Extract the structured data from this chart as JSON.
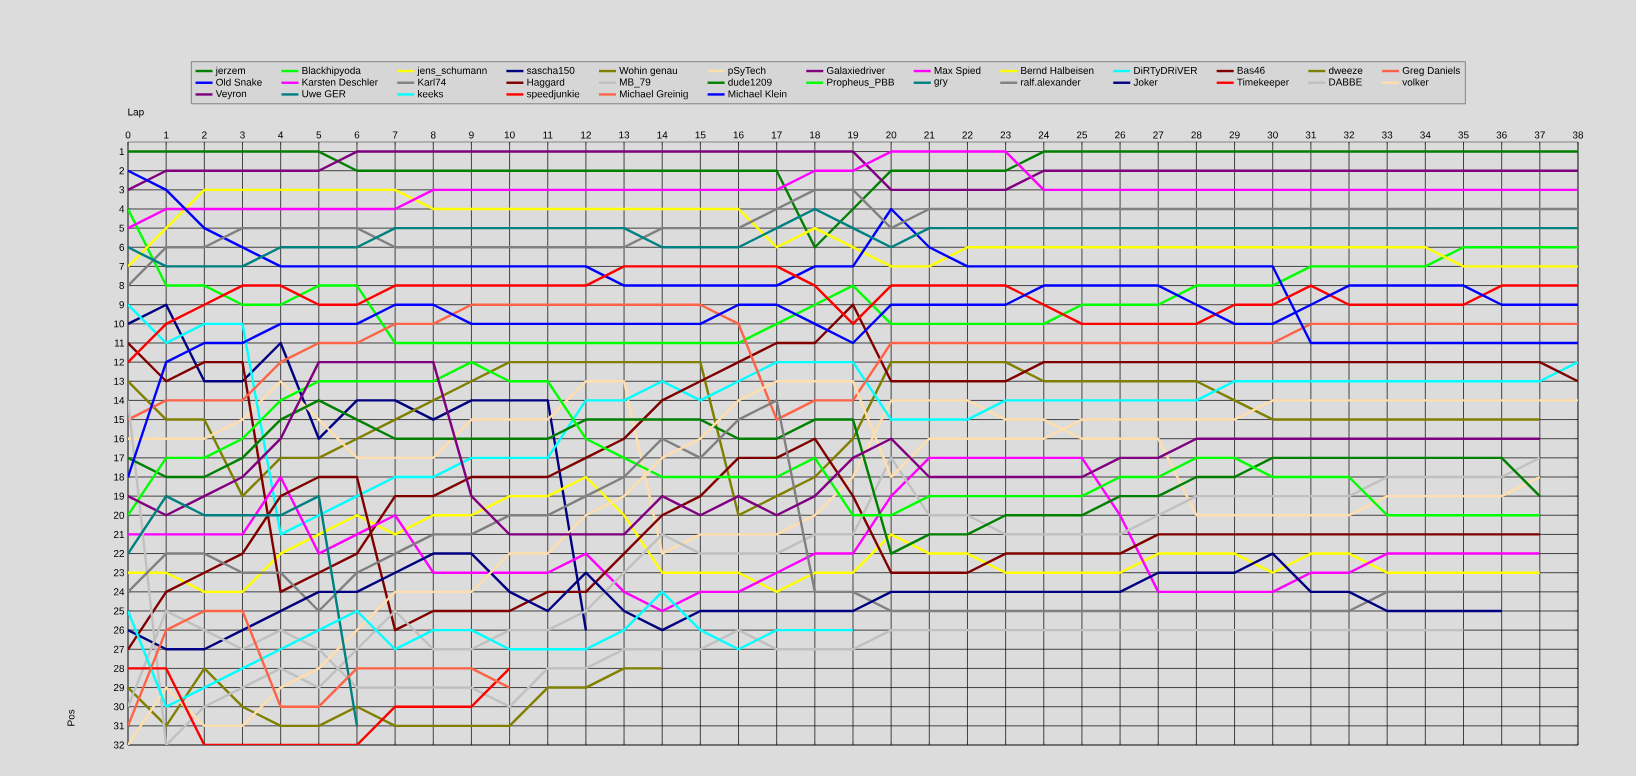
{
  "chart_data": {
    "type": "line",
    "xlabel": "Lap",
    "ylabel": "Pos",
    "x": [
      0,
      1,
      2,
      3,
      4,
      5,
      6,
      7,
      8,
      9,
      10,
      11,
      12,
      13,
      14,
      15,
      16,
      17,
      18,
      19,
      20,
      21,
      22,
      23,
      24,
      25,
      26,
      27,
      28,
      29,
      30,
      31,
      32,
      33,
      34,
      35,
      36,
      37,
      38
    ],
    "xlim": [
      0,
      38
    ],
    "xticks": [
      0,
      1,
      2,
      3,
      4,
      5,
      6,
      7,
      8,
      9,
      10,
      11,
      12,
      13,
      14,
      15,
      16,
      17,
      18,
      19,
      20,
      21,
      22,
      23,
      24,
      25,
      26,
      27,
      28,
      29,
      30,
      31,
      32,
      33,
      34,
      35,
      36,
      37,
      38
    ],
    "ylim": [
      32,
      0.5
    ],
    "yticks": [
      1,
      2,
      3,
      4,
      5,
      6,
      7,
      8,
      9,
      10,
      11,
      12,
      13,
      14,
      15,
      16,
      17,
      18,
      19,
      20,
      21,
      22,
      23,
      24,
      25,
      26,
      27,
      28,
      29,
      30,
      31,
      32
    ],
    "grid": true,
    "legend": "top",
    "marker": "none",
    "line_style": "solid",
    "series": [
      {
        "name": "jerzem",
        "color": "#008000",
        "values": [
          1,
          1,
          1,
          1,
          1,
          1,
          2,
          2,
          2,
          2,
          2,
          2,
          2,
          2,
          2,
          2,
          2,
          2,
          6,
          4,
          2,
          2,
          2,
          2,
          1,
          1,
          1,
          1,
          1,
          1,
          1,
          1,
          1,
          1,
          1,
          1,
          1,
          1,
          1
        ]
      },
      {
        "name": "Blackhipyoda",
        "color": "#00ff00",
        "values": [
          4,
          8,
          8,
          9,
          9,
          8,
          8,
          11,
          11,
          11,
          11,
          11,
          11,
          11,
          11,
          11,
          11,
          10,
          9,
          8,
          10,
          10,
          10,
          10,
          10,
          9,
          9,
          9,
          8,
          8,
          8,
          7,
          7,
          7,
          7,
          6,
          6,
          6,
          6
        ]
      },
      {
        "name": "jens_schumann",
        "color": "#ffff00",
        "values": [
          7,
          5,
          3,
          3,
          3,
          3,
          3,
          3,
          4,
          4,
          4,
          4,
          4,
          4,
          4,
          4,
          4,
          6,
          5,
          6,
          7,
          7,
          6,
          6,
          6,
          6,
          6,
          6,
          6,
          6,
          6,
          6,
          6,
          6,
          6,
          7,
          7,
          7,
          7
        ]
      },
      {
        "name": "sascha150",
        "color": "#000080",
        "values": [
          10,
          9,
          13,
          13,
          11,
          16,
          14,
          14,
          15,
          14,
          14,
          14,
          26,
          null,
          null,
          null,
          null,
          null,
          null,
          null,
          null,
          null,
          null,
          null,
          null,
          null,
          null,
          null,
          null,
          null,
          null,
          null,
          null,
          null,
          null,
          null,
          null,
          null,
          null
        ]
      },
      {
        "name": "Wohin genau",
        "color": "#808000",
        "values": [
          13,
          15,
          15,
          19,
          17,
          17,
          16,
          15,
          14,
          13,
          12,
          12,
          12,
          12,
          12,
          12,
          20,
          19,
          18,
          16,
          12,
          12,
          12,
          12,
          13,
          13,
          13,
          13,
          13,
          14,
          15,
          15,
          15,
          15,
          15,
          15,
          15,
          15,
          null
        ]
      },
      {
        "name": "pSyTech",
        "color": "#ffdead",
        "values": [
          16,
          16,
          16,
          15,
          13,
          15,
          17,
          17,
          17,
          15,
          15,
          15,
          13,
          13,
          22,
          21,
          21,
          21,
          20,
          18,
          14,
          14,
          14,
          15,
          15,
          16,
          16,
          16,
          20,
          20,
          20,
          20,
          20,
          19,
          19,
          19,
          19,
          18,
          null
        ]
      },
      {
        "name": "Galaxiedriver",
        "color": "#800080",
        "values": [
          3,
          2,
          2,
          2,
          2,
          2,
          1,
          1,
          1,
          1,
          1,
          1,
          1,
          1,
          1,
          1,
          1,
          1,
          1,
          1,
          3,
          3,
          3,
          3,
          2,
          2,
          2,
          2,
          2,
          2,
          2,
          2,
          2,
          2,
          2,
          2,
          2,
          2,
          2
        ]
      },
      {
        "name": "Max Spied",
        "color": "#ff00ff",
        "values": [
          5,
          4,
          4,
          4,
          4,
          4,
          4,
          4,
          3,
          3,
          3,
          3,
          3,
          3,
          3,
          3,
          3,
          3,
          2,
          2,
          1,
          1,
          1,
          1,
          3,
          3,
          3,
          3,
          3,
          3,
          3,
          3,
          3,
          3,
          3,
          3,
          3,
          3,
          3
        ]
      },
      {
        "name": "Bernd Halbeisen",
        "color": "#ffff00",
        "values": [
          23,
          23,
          24,
          24,
          22,
          21,
          20,
          21,
          20,
          20,
          19,
          19,
          18,
          20,
          23,
          23,
          23,
          24,
          23,
          23,
          21,
          22,
          22,
          23,
          23,
          23,
          23,
          22,
          22,
          22,
          23,
          22,
          22,
          23,
          23,
          23,
          23,
          23,
          null
        ]
      },
      {
        "name": "DiRTyDRiVER",
        "color": "#00ffff",
        "values": [
          9,
          11,
          10,
          10,
          21,
          20,
          19,
          18,
          18,
          17,
          17,
          17,
          14,
          14,
          13,
          14,
          13,
          12,
          12,
          12,
          15,
          15,
          15,
          14,
          14,
          14,
          14,
          14,
          14,
          13,
          13,
          13,
          13,
          13,
          13,
          13,
          13,
          13,
          12
        ]
      },
      {
        "name": "Bas46",
        "color": "#800000",
        "values": [
          11,
          13,
          12,
          12,
          24,
          23,
          22,
          19,
          19,
          18,
          18,
          18,
          17,
          16,
          14,
          13,
          12,
          11,
          11,
          9,
          13,
          13,
          13,
          13,
          12,
          12,
          12,
          12,
          12,
          12,
          12,
          12,
          12,
          12,
          12,
          12,
          12,
          12,
          13
        ]
      },
      {
        "name": "dweeze",
        "color": "#808000",
        "values": [
          29,
          31,
          28,
          30,
          31,
          31,
          30,
          31,
          31,
          31,
          31,
          29,
          29,
          28,
          28,
          null,
          null,
          null,
          null,
          null,
          null,
          null,
          null,
          null,
          null,
          null,
          null,
          null,
          null,
          null,
          null,
          null,
          null,
          null,
          null,
          null,
          null,
          null,
          null
        ]
      },
      {
        "name": "Greg Daniels",
        "color": "#ff6347",
        "values": [
          15,
          14,
          14,
          14,
          12,
          11,
          11,
          10,
          10,
          9,
          9,
          9,
          9,
          9,
          9,
          9,
          10,
          15,
          14,
          14,
          11,
          11,
          11,
          11,
          11,
          11,
          11,
          11,
          11,
          11,
          11,
          10,
          10,
          10,
          10,
          10,
          10,
          10,
          10
        ]
      },
      {
        "name": "Old Snake",
        "color": "#0000ff",
        "values": [
          2,
          3,
          5,
          6,
          7,
          7,
          7,
          7,
          7,
          7,
          7,
          7,
          7,
          8,
          8,
          8,
          8,
          8,
          7,
          7,
          4,
          6,
          7,
          7,
          7,
          7,
          7,
          7,
          7,
          7,
          7,
          11,
          11,
          11,
          11,
          11,
          11,
          11,
          11
        ]
      },
      {
        "name": "Karsten Deschler",
        "color": "#ff00ff",
        "values": [
          21,
          21,
          21,
          21,
          18,
          22,
          21,
          20,
          23,
          23,
          23,
          23,
          22,
          24,
          25,
          24,
          24,
          23,
          22,
          22,
          19,
          17,
          17,
          17,
          17,
          17,
          20,
          24,
          24,
          24,
          24,
          23,
          23,
          22,
          22,
          22,
          22,
          22,
          null
        ]
      },
      {
        "name": "Karl74",
        "color": "#808080",
        "values": [
          8,
          6,
          6,
          5,
          5,
          5,
          5,
          6,
          6,
          6,
          6,
          6,
          6,
          6,
          5,
          5,
          5,
          4,
          3,
          3,
          5,
          4,
          4,
          4,
          4,
          4,
          4,
          4,
          4,
          4,
          4,
          4,
          4,
          4,
          4,
          4,
          4,
          4,
          4
        ]
      },
      {
        "name": "Haggard",
        "color": "#800000",
        "values": [
          27,
          24,
          23,
          22,
          19,
          18,
          18,
          26,
          25,
          25,
          25,
          24,
          24,
          22,
          20,
          19,
          17,
          17,
          16,
          19,
          23,
          23,
          23,
          22,
          22,
          22,
          22,
          21,
          21,
          21,
          21,
          21,
          21,
          21,
          21,
          21,
          21,
          21,
          null
        ]
      },
      {
        "name": "MB_79",
        "color": "#c0c0c0",
        "values": [
          14,
          32,
          30,
          29,
          28,
          29,
          27,
          25,
          27,
          27,
          26,
          26,
          25,
          23,
          21,
          22,
          22,
          22,
          21,
          21,
          17,
          20,
          20,
          21,
          21,
          21,
          21,
          20,
          19,
          19,
          19,
          19,
          19,
          18,
          18,
          18,
          18,
          17,
          null
        ]
      },
      {
        "name": "dude1209",
        "color": "#008000",
        "values": [
          17,
          18,
          18,
          17,
          15,
          14,
          15,
          16,
          16,
          16,
          16,
          16,
          15,
          15,
          15,
          15,
          16,
          16,
          15,
          15,
          22,
          21,
          21,
          20,
          20,
          20,
          19,
          19,
          18,
          18,
          17,
          17,
          17,
          17,
          17,
          17,
          17,
          19,
          null
        ]
      },
      {
        "name": "Propheus_PBB",
        "color": "#00ff00",
        "values": [
          20,
          17,
          17,
          16,
          14,
          13,
          13,
          13,
          13,
          12,
          13,
          13,
          16,
          17,
          18,
          18,
          18,
          18,
          17,
          20,
          20,
          19,
          19,
          19,
          19,
          19,
          18,
          18,
          17,
          17,
          18,
          18,
          18,
          20,
          20,
          20,
          20,
          20,
          null
        ]
      },
      {
        "name": "gry",
        "color": "#008080",
        "values": [
          6,
          7,
          7,
          7,
          6,
          6,
          6,
          5,
          5,
          5,
          5,
          5,
          5,
          5,
          6,
          6,
          6,
          5,
          4,
          5,
          6,
          5,
          5,
          5,
          5,
          5,
          5,
          5,
          5,
          5,
          5,
          5,
          5,
          5,
          5,
          5,
          5,
          5,
          5
        ]
      },
      {
        "name": "ralf.alexander",
        "color": "#808080",
        "values": [
          24,
          22,
          22,
          23,
          23,
          25,
          23,
          22,
          21,
          21,
          20,
          20,
          19,
          18,
          16,
          17,
          15,
          14,
          24,
          24,
          25,
          25,
          25,
          25,
          25,
          25,
          25,
          25,
          25,
          25,
          25,
          25,
          25,
          24,
          24,
          24,
          24,
          null,
          null
        ]
      },
      {
        "name": "Joker",
        "color": "#000080",
        "values": [
          26,
          27,
          27,
          26,
          25,
          24,
          24,
          23,
          22,
          22,
          24,
          25,
          23,
          25,
          26,
          25,
          25,
          25,
          25,
          25,
          24,
          24,
          24,
          24,
          24,
          24,
          24,
          23,
          23,
          23,
          22,
          24,
          24,
          25,
          25,
          25,
          25,
          null,
          null
        ]
      },
      {
        "name": "Timekeeper",
        "color": "#ff0000",
        "values": [
          12,
          10,
          9,
          8,
          8,
          9,
          9,
          8,
          8,
          8,
          8,
          8,
          8,
          7,
          7,
          7,
          7,
          7,
          8,
          10,
          8,
          8,
          8,
          8,
          9,
          10,
          10,
          10,
          10,
          9,
          9,
          8,
          9,
          9,
          9,
          9,
          8,
          8,
          8
        ]
      },
      {
        "name": "DABBE",
        "color": "#c0c0c0",
        "values": [
          30,
          25,
          26,
          27,
          26,
          27,
          29,
          29,
          29,
          29,
          30,
          28,
          28,
          27,
          27,
          27,
          26,
          27,
          27,
          27,
          26,
          26,
          26,
          26,
          26,
          26,
          26,
          26,
          26,
          26,
          26,
          26,
          26,
          26,
          26,
          26,
          null,
          null,
          null
        ]
      },
      {
        "name": "volker",
        "color": "#ffdead",
        "values": [
          32,
          29,
          31,
          31,
          29,
          28,
          26,
          24,
          24,
          24,
          22,
          22,
          20,
          19,
          17,
          16,
          14,
          13,
          13,
          13,
          18,
          16,
          16,
          16,
          16,
          15,
          15,
          15,
          15,
          15,
          14,
          14,
          14,
          14,
          14,
          14,
          14,
          14,
          14
        ]
      },
      {
        "name": "Veyron",
        "color": "#800080",
        "values": [
          19,
          20,
          19,
          18,
          16,
          12,
          12,
          12,
          12,
          19,
          21,
          21,
          21,
          21,
          19,
          20,
          19,
          20,
          19,
          17,
          16,
          18,
          18,
          18,
          18,
          18,
          17,
          17,
          16,
          16,
          16,
          16,
          16,
          16,
          16,
          16,
          16,
          16,
          null
        ]
      },
      {
        "name": "Uwe GER",
        "color": "#008080",
        "values": [
          22,
          19,
          20,
          20,
          20,
          19,
          31,
          null,
          null,
          null,
          null,
          null,
          null,
          null,
          null,
          null,
          null,
          null,
          null,
          null,
          null,
          null,
          null,
          null,
          null,
          null,
          null,
          null,
          null,
          null,
          null,
          null,
          null,
          null,
          null,
          null,
          null,
          null,
          null
        ]
      },
      {
        "name": "keeks",
        "color": "#00ffff",
        "values": [
          25,
          30,
          29,
          28,
          27,
          26,
          25,
          27,
          26,
          26,
          27,
          27,
          27,
          26,
          24,
          26,
          27,
          26,
          26,
          26,
          null,
          null,
          null,
          null,
          null,
          null,
          null,
          null,
          null,
          null,
          null,
          null,
          null,
          null,
          null,
          null,
          null,
          null,
          null
        ]
      },
      {
        "name": "speedjunkie",
        "color": "#ff0000",
        "values": [
          28,
          28,
          32,
          32,
          32,
          32,
          32,
          30,
          30,
          30,
          28,
          null,
          null,
          null,
          null,
          null,
          null,
          null,
          null,
          null,
          null,
          null,
          null,
          null,
          null,
          null,
          null,
          null,
          null,
          null,
          null,
          null,
          null,
          null,
          null,
          null,
          null,
          null,
          null
        ]
      },
      {
        "name": "Michael Greinig",
        "color": "#ff6347",
        "values": [
          31,
          26,
          25,
          25,
          30,
          30,
          28,
          28,
          28,
          28,
          29,
          null,
          null,
          null,
          null,
          null,
          null,
          null,
          null,
          null,
          null,
          null,
          null,
          null,
          null,
          null,
          null,
          null,
          null,
          null,
          null,
          null,
          null,
          null,
          null,
          null,
          null,
          null,
          null
        ]
      },
      {
        "name": "Michael Klein",
        "color": "#0000ff",
        "values": [
          18,
          12,
          11,
          11,
          10,
          10,
          10,
          9,
          9,
          10,
          10,
          10,
          10,
          10,
          10,
          10,
          9,
          9,
          10,
          11,
          9,
          9,
          9,
          9,
          8,
          8,
          8,
          8,
          9,
          10,
          10,
          9,
          8,
          8,
          8,
          8,
          9,
          9,
          9
        ]
      }
    ]
  }
}
